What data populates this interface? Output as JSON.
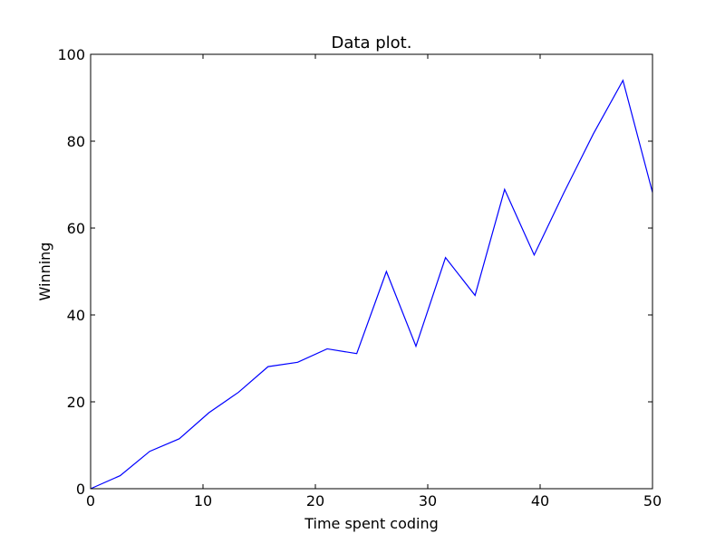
{
  "chart_data": {
    "type": "line",
    "title": "Data plot.",
    "xlabel": "Time spent coding",
    "ylabel": "Winning",
    "xlim": [
      0,
      50
    ],
    "ylim": [
      0,
      100
    ],
    "xticks": [
      0,
      10,
      20,
      30,
      40,
      50
    ],
    "yticks": [
      0,
      20,
      40,
      60,
      80,
      100
    ],
    "grid": false,
    "series": [
      {
        "color": "#0000ff",
        "x": [
          0,
          2.63,
          5.26,
          7.89,
          10.53,
          13.16,
          15.79,
          18.42,
          21.05,
          23.68,
          26.32,
          28.95,
          31.58,
          34.21,
          36.84,
          39.47,
          42.11,
          44.74,
          47.37,
          50
        ],
        "y": [
          0,
          3,
          8.6,
          11.5,
          17.5,
          22.2,
          28.1,
          29.1,
          32.2,
          31.1,
          50,
          32.8,
          53.2,
          44.5,
          68.9,
          53.8,
          68.1,
          81.7,
          94,
          68.2
        ]
      }
    ]
  }
}
